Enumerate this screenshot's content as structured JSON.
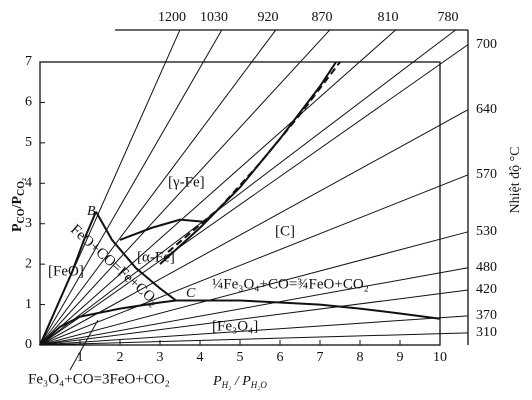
{
  "chart_data": {
    "type": "line",
    "ylabel_parts": [
      "P",
      "CO",
      "/P",
      "CO₂"
    ],
    "xlabel_parts": [
      "P",
      "H₂",
      " / P",
      "H₂O"
    ],
    "y2label": "Nhiệt độ °C",
    "xlim": [
      0,
      10
    ],
    "ylim": [
      0,
      7
    ],
    "xticks": [
      1,
      2,
      3,
      4,
      5,
      6,
      7,
      8,
      9,
      10
    ],
    "yticks": [
      0,
      1,
      2,
      3,
      4,
      5,
      6,
      7
    ],
    "isotherms": [
      {
        "label": "1200",
        "x": 3.5,
        "y": 7.8
      },
      {
        "label": "1030",
        "x": 4.55,
        "y": 7.8
      },
      {
        "label": "920",
        "x": 5.9,
        "y": 7.8
      },
      {
        "label": "870",
        "x": 7.25,
        "y": 7.8
      },
      {
        "label": "810",
        "x": 8.9,
        "y": 7.8
      },
      {
        "label": "780",
        "x": 10.4,
        "y": 7.8
      },
      {
        "label": "700",
        "x": 10.7,
        "y": 7.43
      },
      {
        "label": "640",
        "x": 10.7,
        "y": 5.82
      },
      {
        "label": "570",
        "x": 10.7,
        "y": 4.21
      },
      {
        "label": "530",
        "x": 10.7,
        "y": 2.8
      },
      {
        "label": "480",
        "x": 10.7,
        "y": 1.91
      },
      {
        "label": "420",
        "x": 10.7,
        "y": 1.36
      },
      {
        "label": "370",
        "x": 10.7,
        "y": 0.72
      },
      {
        "label": "310",
        "x": 10.7,
        "y": 0.3
      }
    ],
    "series": [
      {
        "style": "solid",
        "x": [
          0,
          0.4,
          0.8,
          1.1,
          1.4
        ],
        "y": [
          0,
          0.9,
          1.8,
          2.6,
          3.3
        ]
      },
      {
        "style": "solid",
        "x": [
          1.4,
          1.8,
          2.4,
          3,
          3.4
        ],
        "y": [
          3.3,
          2.6,
          1.9,
          1.4,
          1.1
        ]
      },
      {
        "style": "solid",
        "x": [
          0,
          0.5,
          1,
          2,
          3,
          3.4
        ],
        "y": [
          0,
          0.45,
          0.7,
          0.9,
          1.05,
          1.1
        ]
      },
      {
        "style": "solid",
        "x": [
          3.4,
          4,
          5,
          6,
          7,
          8,
          9,
          10
        ],
        "y": [
          1.1,
          1.1,
          1.1,
          1.05,
          1,
          0.9,
          0.78,
          0.65
        ]
      },
      {
        "style": "solid",
        "x": [
          2,
          2.8,
          3.5,
          4.1
        ],
        "y": [
          2.6,
          2.9,
          3.1,
          3.05
        ]
      },
      {
        "style": "solid",
        "x": [
          3,
          4,
          5,
          6,
          7,
          7.4
        ],
        "y": [
          2,
          2.9,
          3.9,
          5.1,
          6.4,
          7
        ]
      },
      {
        "style": "dashed",
        "x": [
          3.2,
          4.5,
          5.5,
          6.5,
          7.5
        ],
        "y": [
          2.3,
          3.4,
          4.5,
          5.7,
          7
        ]
      }
    ],
    "labels": {
      "B": "B",
      "C": "C",
      "gamma_fe": "[γ-Fe]",
      "alpha_fe": "[α-Fe]",
      "carbon": "[C]",
      "feo": "[FeO]",
      "feo_reaction": "FeO+CO=Fe+CO₂",
      "fe3o4_fe_reaction": "¼Fe₃O₄+CO=¾FeO+CO₂",
      "fe3o4": "[Fe₃O₄]",
      "fe3o4_feo_reaction": "Fe₃O₄+CO=3FeO+CO₂"
    }
  }
}
